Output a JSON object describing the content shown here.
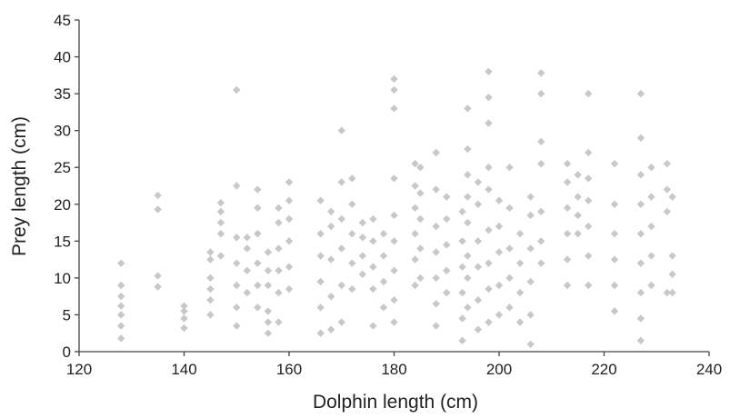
{
  "chart_data": {
    "type": "scatter",
    "xlabel": "Dolphin length (cm)",
    "ylabel": "Prey length (cm)",
    "xlim": [
      120,
      240
    ],
    "ylim": [
      0,
      45
    ],
    "x_ticks": [
      "120",
      "140",
      "160",
      "180",
      "200",
      "220",
      "240"
    ],
    "y_ticks": [
      "0",
      "5",
      "10",
      "15",
      "20",
      "25",
      "30",
      "35",
      "40",
      "45"
    ],
    "grid": false,
    "marker": "diamond",
    "marker_color": "#c8c8c8",
    "series": [
      {
        "points": [
          [
            128,
            1.8
          ],
          [
            128,
            3.5
          ],
          [
            128,
            5.0
          ],
          [
            128,
            6.2
          ],
          [
            128,
            7.5
          ],
          [
            128,
            9.0
          ],
          [
            128,
            12.0
          ],
          [
            135,
            8.8
          ],
          [
            135,
            10.3
          ],
          [
            135,
            19.3
          ],
          [
            135,
            21.2
          ],
          [
            140,
            3.2
          ],
          [
            140,
            4.5
          ],
          [
            140,
            5.5
          ],
          [
            140,
            6.2
          ],
          [
            145,
            5.0
          ],
          [
            145,
            7.0
          ],
          [
            145,
            8.5
          ],
          [
            145,
            10.0
          ],
          [
            145,
            12.5
          ],
          [
            145,
            13.5
          ],
          [
            147,
            13.0
          ],
          [
            147,
            16.0
          ],
          [
            147,
            17.5
          ],
          [
            147,
            19.0
          ],
          [
            147,
            20.2
          ],
          [
            150,
            3.5
          ],
          [
            150,
            6.0
          ],
          [
            150,
            9.0
          ],
          [
            150,
            12.0
          ],
          [
            150,
            15.5
          ],
          [
            150,
            22.5
          ],
          [
            150,
            35.5
          ],
          [
            152,
            8.0
          ],
          [
            152,
            11.0
          ],
          [
            152,
            14.0
          ],
          [
            152,
            15.5
          ],
          [
            154,
            6.0
          ],
          [
            154,
            9.0
          ],
          [
            154,
            12.0
          ],
          [
            154,
            16.0
          ],
          [
            154,
            19.5
          ],
          [
            154,
            22.0
          ],
          [
            156,
            2.5
          ],
          [
            156,
            4.0
          ],
          [
            156,
            5.5
          ],
          [
            156,
            9.0
          ],
          [
            156,
            11.0
          ],
          [
            156,
            13.5
          ],
          [
            158,
            4.0
          ],
          [
            158,
            8.0
          ],
          [
            158,
            11.0
          ],
          [
            158,
            14.0
          ],
          [
            158,
            17.5
          ],
          [
            158,
            19.5
          ],
          [
            160,
            8.5
          ],
          [
            160,
            11.5
          ],
          [
            160,
            15.0
          ],
          [
            160,
            18.0
          ],
          [
            160,
            20.5
          ],
          [
            160,
            23.0
          ],
          [
            166,
            2.5
          ],
          [
            166,
            6.0
          ],
          [
            166,
            9.5
          ],
          [
            166,
            13.0
          ],
          [
            166,
            16.0
          ],
          [
            166,
            20.5
          ],
          [
            168,
            3.0
          ],
          [
            168,
            7.5
          ],
          [
            168,
            12.5
          ],
          [
            168,
            17.0
          ],
          [
            168,
            19.0
          ],
          [
            170,
            4.0
          ],
          [
            170,
            9.0
          ],
          [
            170,
            14.0
          ],
          [
            170,
            18.0
          ],
          [
            170,
            23.0
          ],
          [
            170,
            30.0
          ],
          [
            172,
            8.5
          ],
          [
            172,
            12.0
          ],
          [
            172,
            16.0
          ],
          [
            172,
            20.0
          ],
          [
            172,
            23.5
          ],
          [
            174,
            10.5
          ],
          [
            174,
            13.0
          ],
          [
            174,
            15.5
          ],
          [
            174,
            17.5
          ],
          [
            176,
            3.5
          ],
          [
            176,
            8.5
          ],
          [
            176,
            11.5
          ],
          [
            176,
            15.0
          ],
          [
            176,
            18.0
          ],
          [
            178,
            6.0
          ],
          [
            178,
            9.5
          ],
          [
            178,
            13.0
          ],
          [
            178,
            16.0
          ],
          [
            180,
            4.0
          ],
          [
            180,
            7.0
          ],
          [
            180,
            11.0
          ],
          [
            180,
            15.0
          ],
          [
            180,
            18.5
          ],
          [
            180,
            23.5
          ],
          [
            180,
            33.0
          ],
          [
            180,
            35.5
          ],
          [
            180,
            37.0
          ],
          [
            184,
            9.0
          ],
          [
            184,
            12.5
          ],
          [
            184,
            16.0
          ],
          [
            184,
            19.5
          ],
          [
            184,
            22.5
          ],
          [
            184,
            25.5
          ],
          [
            185,
            10.0
          ],
          [
            185,
            14.0
          ],
          [
            185,
            18.0
          ],
          [
            185,
            21.5
          ],
          [
            185,
            25.0
          ],
          [
            188,
            3.5
          ],
          [
            188,
            6.5
          ],
          [
            188,
            10.0
          ],
          [
            188,
            13.5
          ],
          [
            188,
            17.0
          ],
          [
            188,
            22.0
          ],
          [
            188,
            27.0
          ],
          [
            190,
            8.0
          ],
          [
            190,
            11.0
          ],
          [
            190,
            14.5
          ],
          [
            190,
            18.0
          ],
          [
            190,
            21.0
          ],
          [
            193,
            1.5
          ],
          [
            193,
            4.5
          ],
          [
            193,
            8.0
          ],
          [
            193,
            11.5
          ],
          [
            193,
            15.0
          ],
          [
            193,
            19.0
          ],
          [
            194,
            6.0
          ],
          [
            194,
            10.0
          ],
          [
            194,
            13.0
          ],
          [
            194,
            17.5
          ],
          [
            194,
            21.0
          ],
          [
            194,
            24.0
          ],
          [
            194,
            27.5
          ],
          [
            194,
            33.0
          ],
          [
            196,
            3.0
          ],
          [
            196,
            7.0
          ],
          [
            196,
            11.5
          ],
          [
            196,
            15.0
          ],
          [
            196,
            20.0
          ],
          [
            196,
            23.0
          ],
          [
            198,
            4.0
          ],
          [
            198,
            8.5
          ],
          [
            198,
            12.0
          ],
          [
            198,
            16.5
          ],
          [
            198,
            22.0
          ],
          [
            198,
            25.0
          ],
          [
            198,
            31.0
          ],
          [
            198,
            34.5
          ],
          [
            198,
            38.0
          ],
          [
            200,
            5.0
          ],
          [
            200,
            9.0
          ],
          [
            200,
            13.5
          ],
          [
            200,
            17.0
          ],
          [
            200,
            20.5
          ],
          [
            202,
            6.0
          ],
          [
            202,
            10.0
          ],
          [
            202,
            14.0
          ],
          [
            202,
            19.5
          ],
          [
            202,
            25.0
          ],
          [
            204,
            4.0
          ],
          [
            204,
            8.0
          ],
          [
            204,
            12.0
          ],
          [
            204,
            16.0
          ],
          [
            206,
            1.0
          ],
          [
            206,
            5.0
          ],
          [
            206,
            9.5
          ],
          [
            206,
            14.0
          ],
          [
            206,
            18.5
          ],
          [
            206,
            21.0
          ],
          [
            208,
            12.0
          ],
          [
            208,
            15.0
          ],
          [
            208,
            19.0
          ],
          [
            208,
            25.5
          ],
          [
            208,
            28.5
          ],
          [
            208,
            35.0
          ],
          [
            208,
            37.8
          ],
          [
            213,
            9.0
          ],
          [
            213,
            12.5
          ],
          [
            213,
            16.0
          ],
          [
            213,
            19.5
          ],
          [
            213,
            23.0
          ],
          [
            213,
            25.5
          ],
          [
            215,
            16.0
          ],
          [
            215,
            18.5
          ],
          [
            215,
            21.0
          ],
          [
            215,
            24.0
          ],
          [
            217,
            9.0
          ],
          [
            217,
            13.0
          ],
          [
            217,
            17.0
          ],
          [
            217,
            20.5
          ],
          [
            217,
            23.5
          ],
          [
            217,
            27.0
          ],
          [
            217,
            35.0
          ],
          [
            222,
            5.5
          ],
          [
            222,
            9.0
          ],
          [
            222,
            12.5
          ],
          [
            222,
            16.0
          ],
          [
            222,
            20.0
          ],
          [
            222,
            25.5
          ],
          [
            227,
            1.5
          ],
          [
            227,
            4.5
          ],
          [
            227,
            8.0
          ],
          [
            227,
            12.0
          ],
          [
            227,
            16.0
          ],
          [
            227,
            20.0
          ],
          [
            227,
            24.0
          ],
          [
            227,
            29.0
          ],
          [
            227,
            35.0
          ],
          [
            229,
            9.0
          ],
          [
            229,
            13.0
          ],
          [
            229,
            17.0
          ],
          [
            229,
            21.0
          ],
          [
            229,
            25.0
          ],
          [
            232,
            8.0
          ],
          [
            232,
            19.0
          ],
          [
            232,
            22.0
          ],
          [
            232,
            25.5
          ],
          [
            233,
            8.0
          ],
          [
            233,
            10.5
          ],
          [
            233,
            13.0
          ],
          [
            233,
            21.0
          ]
        ]
      }
    ]
  }
}
